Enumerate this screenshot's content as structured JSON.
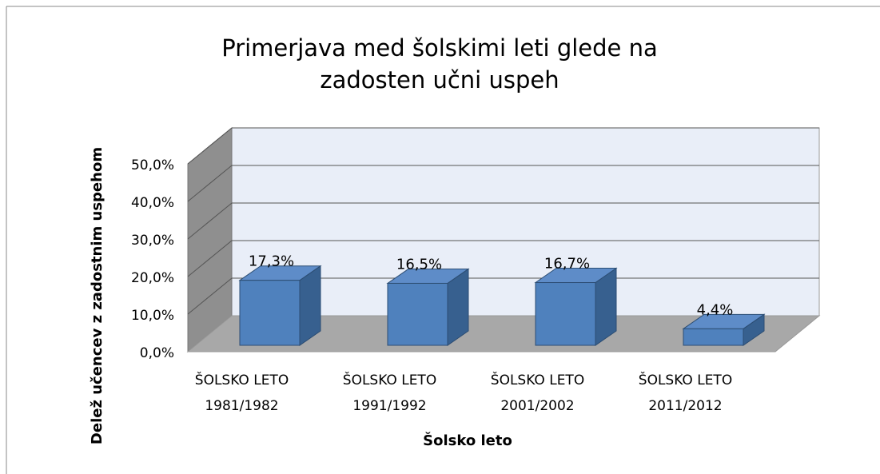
{
  "chart_data": {
    "type": "bar3d",
    "title": "Primerjava med šolskimi leti glede na zadosten učni uspeh",
    "y_label": "Delež učencev z zadostnim uspehom",
    "x_label": "Šolsko leto",
    "categories": [
      "ŠOLSKO LETO 1981/1982",
      "ŠOLSKO LETO 1991/1992",
      "ŠOLSKO LETO 2001/2002",
      "ŠOLSKO LETO 2011/2012"
    ],
    "values": [
      17.3,
      16.5,
      16.7,
      4.4
    ],
    "value_labels": [
      "17,3%",
      "16,5%",
      "16,7%",
      "4,4%"
    ],
    "color": "#4f81bd",
    "ylim": [
      0,
      50
    ],
    "yticks": [
      {
        "value": 0,
        "label": "0,0%"
      },
      {
        "value": 10,
        "label": "10,0%"
      },
      {
        "value": 20,
        "label": "20,0%"
      },
      {
        "value": 30,
        "label": "30,0%"
      },
      {
        "value": 40,
        "label": "40,0%"
      },
      {
        "value": 50,
        "label": "50,0%"
      }
    ],
    "grid": true
  }
}
